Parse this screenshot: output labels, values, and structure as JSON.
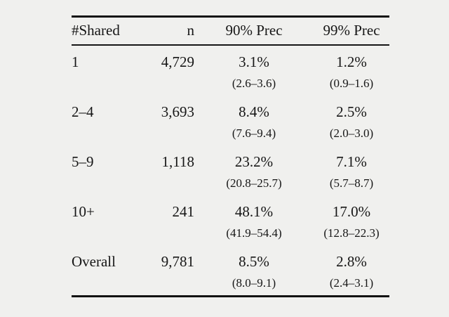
{
  "colors": {
    "background": "#f0f0ee",
    "text": "#161616",
    "rule": "#121212"
  },
  "table": {
    "columns": [
      {
        "label": "#Shared",
        "align": "left"
      },
      {
        "label": "n",
        "align": "right"
      },
      {
        "label": "90% Prec",
        "align": "center"
      },
      {
        "label": "99% Prec",
        "align": "center"
      }
    ],
    "rows": [
      {
        "shared": "1",
        "n": "4,729",
        "prec90": "3.1%",
        "prec90_ci": "(2.6–3.6)",
        "prec99": "1.2%",
        "prec99_ci": "(0.9–1.6)"
      },
      {
        "shared": "2–4",
        "n": "3,693",
        "prec90": "8.4%",
        "prec90_ci": "(7.6–9.4)",
        "prec99": "2.5%",
        "prec99_ci": "(2.0–3.0)"
      },
      {
        "shared": "5–9",
        "n": "1,118",
        "prec90": "23.2%",
        "prec90_ci": "(20.8–25.7)",
        "prec99": "7.1%",
        "prec99_ci": "(5.7–8.7)"
      },
      {
        "shared": "10+",
        "n": "241",
        "prec90": "48.1%",
        "prec90_ci": "(41.9–54.4)",
        "prec99": "17.0%",
        "prec99_ci": "(12.8–22.3)"
      },
      {
        "shared": "Overall",
        "n": "9,781",
        "prec90": "8.5%",
        "prec90_ci": "(8.0–9.1)",
        "prec99": "2.8%",
        "prec99_ci": "(2.4–3.1)"
      }
    ]
  },
  "chart_data": {
    "type": "table",
    "title": "",
    "columns": [
      "#Shared",
      "n",
      "90% Prec",
      "99% Prec"
    ],
    "rows": [
      [
        "1",
        "4,729",
        "3.1% (2.6–3.6)",
        "1.2% (0.9–1.6)"
      ],
      [
        "2–4",
        "3,693",
        "8.4% (7.6–9.4)",
        "2.5% (2.0–3.0)"
      ],
      [
        "5–9",
        "1,118",
        "23.2% (20.8–25.7)",
        "7.1% (5.7–8.7)"
      ],
      [
        "10+",
        "241",
        "48.1% (41.9–54.4)",
        "17.0% (12.8–22.3)"
      ],
      [
        "Overall",
        "9,781",
        "8.5% (8.0–9.1)",
        "2.8% (2.4–3.1)"
      ]
    ]
  }
}
